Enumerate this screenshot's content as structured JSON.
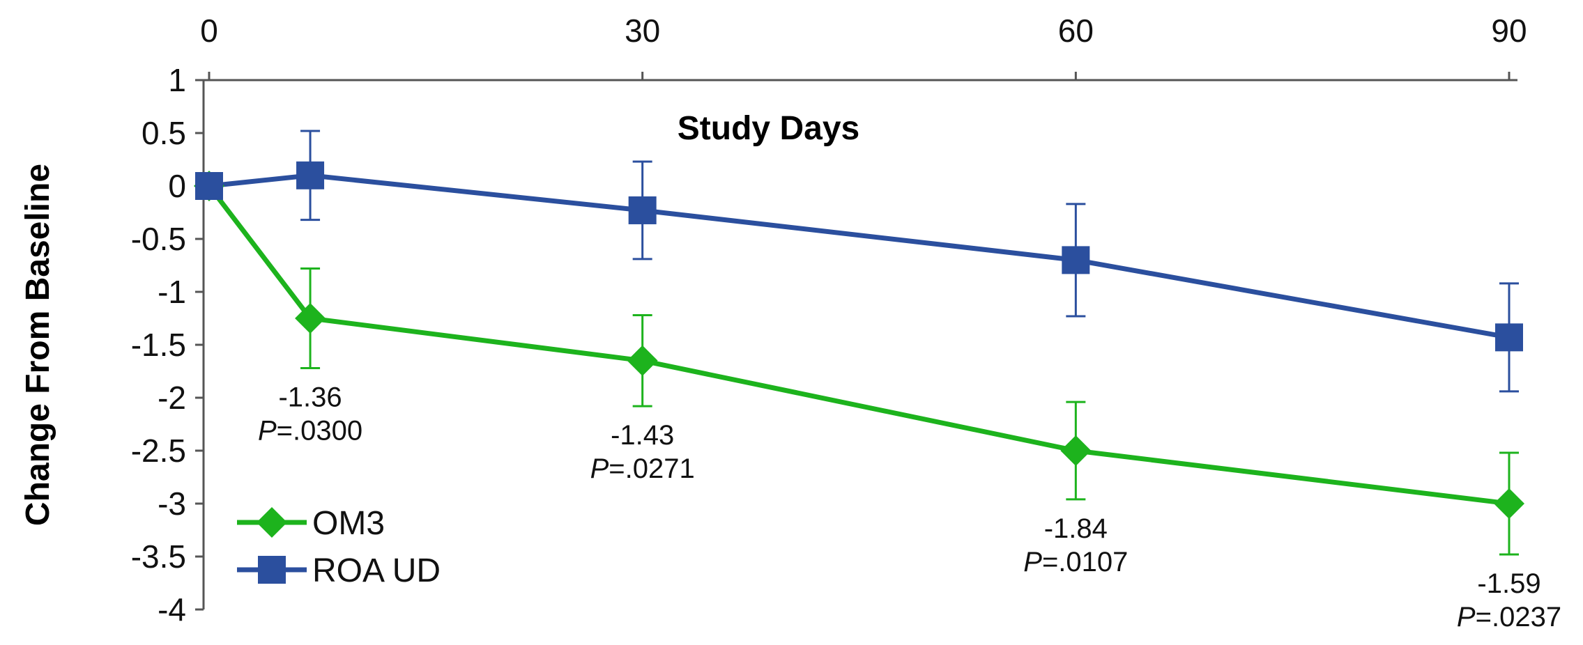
{
  "chart_data": {
    "type": "line",
    "title": "",
    "xlabel": "Study Days",
    "ylabel": "Change From Baseline",
    "x_axis_position": "top",
    "xlim": [
      0,
      90
    ],
    "ylim": [
      -4,
      1
    ],
    "x_ticks": [
      "0",
      "30",
      "60",
      "90"
    ],
    "y_ticks": [
      "1",
      "0.5",
      "0",
      "-0.5",
      "-1",
      "-1.5",
      "-2",
      "-2.5",
      "-3",
      "-3.5",
      "-4"
    ],
    "grid": false,
    "legend_position": "bottom-left",
    "series": [
      {
        "name": "OM3",
        "color": "#1db31d",
        "marker": "diamond",
        "x": [
          0,
          7,
          30,
          60,
          90
        ],
        "y": [
          0,
          -1.25,
          -1.65,
          -2.5,
          -3.0
        ],
        "err": [
          0,
          0.47,
          0.43,
          0.46,
          0.48
        ]
      },
      {
        "name": "ROA UD",
        "color": "#2b4f9e",
        "marker": "square",
        "x": [
          0,
          7,
          30,
          60,
          90
        ],
        "y": [
          0,
          0.1,
          -0.23,
          -0.7,
          -1.43
        ],
        "err": [
          0,
          0.42,
          0.46,
          0.53,
          0.51
        ]
      }
    ],
    "annotations": [
      {
        "x": 7,
        "value": "-1.36",
        "p_label": "P",
        "p_value": "=.0300"
      },
      {
        "x": 30,
        "value": "-1.43",
        "p_label": "P",
        "p_value": "=.0271"
      },
      {
        "x": 60,
        "value": "-1.84",
        "p_label": "P",
        "p_value": "=.0107"
      },
      {
        "x": 90,
        "value": "-1.59",
        "p_label": "P",
        "p_value": "=.0237"
      }
    ]
  }
}
